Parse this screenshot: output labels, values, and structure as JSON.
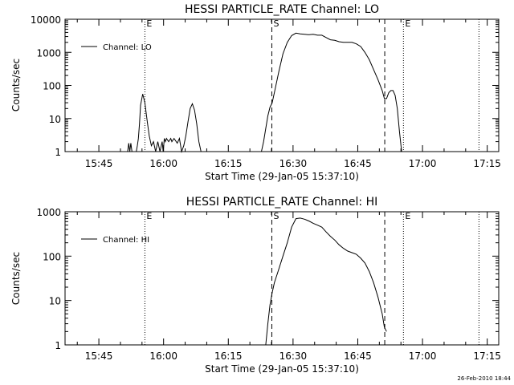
{
  "footer": {
    "timestamp": "26-Feb-2010 18:44"
  },
  "chart_data": [
    {
      "type": "line",
      "title": "HESSI PARTICLE_RATE Channel: LO",
      "xlabel": "Start Time (29-Jan-05 15:37:10)",
      "ylabel": "Counts/sec",
      "y_scale": "log",
      "ylim": [
        1,
        10000
      ],
      "yticks": [
        1,
        10,
        100,
        1000,
        10000
      ],
      "ytick_labels": [
        "1",
        "10",
        "100",
        "1000",
        "10000"
      ],
      "xlim": [
        "15:37:10",
        "17:17:40"
      ],
      "xticks": [
        "15:45",
        "16:00",
        "16:15",
        "16:30",
        "16:45",
        "17:00",
        "17:15"
      ],
      "legend": {
        "position": "top-left",
        "entries": [
          "Channel: LO"
        ]
      },
      "marker_labels": [
        "E",
        "S",
        "E"
      ],
      "dotted_lines": [
        "15:55:40",
        "16:55:35",
        "17:13:05"
      ],
      "dashed_lines": [
        "16:25:05",
        "16:51:15"
      ],
      "series": [
        {
          "name": "Channel: LO",
          "x": [
            "15:51:40",
            "15:51:55",
            "15:52:10",
            "15:52:25",
            "15:52:40",
            "15:53:40",
            "15:53:55",
            "15:54:10",
            "15:54:25",
            "15:54:40",
            "15:55:10",
            "15:55:40",
            "15:56:10",
            "15:56:40",
            "15:57:10",
            "15:57:40",
            "15:58:10",
            "15:58:40",
            "15:59:10",
            "15:59:40",
            "15:59:55",
            "16:00:10",
            "16:00:25",
            "16:00:40",
            "16:01:10",
            "16:01:40",
            "16:01:55",
            "16:02:25",
            "16:03:10",
            "16:03:40",
            "16:04:10",
            "16:04:40",
            "16:05:10",
            "16:05:40",
            "16:06:10",
            "16:06:40",
            "16:07:10",
            "16:07:40",
            "16:08:10",
            "16:08:40",
            "16:09:10",
            "16:09:40",
            "16:10:10",
            "16:10:40",
            "16:11:10",
            "16:11:40",
            "16:12:10",
            "16:12:40",
            "16:13:00",
            "16:22:40",
            "16:23:10",
            "16:23:40",
            "16:24:10",
            "16:24:40",
            "16:25:10",
            "16:25:40",
            "16:26:40",
            "16:27:40",
            "16:28:40",
            "16:29:40",
            "16:30:40",
            "16:31:40",
            "16:32:40",
            "16:33:40",
            "16:34:40",
            "16:35:40",
            "16:36:40",
            "16:37:40",
            "16:38:40",
            "16:39:40",
            "16:40:40",
            "16:41:40",
            "16:42:40",
            "16:43:40",
            "16:44:40",
            "16:45:40",
            "16:46:40",
            "16:47:40",
            "16:48:40",
            "16:49:40",
            "16:50:40",
            "16:51:10",
            "16:51:40",
            "16:52:10",
            "16:52:40",
            "16:53:10",
            "16:53:40",
            "16:54:10",
            "16:54:40",
            "16:55:10"
          ],
          "values": [
            1,
            1.8,
            1,
            1.8,
            1,
            1,
            1.5,
            2.5,
            7,
            25,
            55,
            30,
            9,
            3,
            1.5,
            2,
            1,
            2,
            1,
            2,
            1,
            2.5,
            2,
            2.5,
            2,
            2.5,
            2,
            2.5,
            1.8,
            2.5,
            1,
            1.5,
            3,
            8,
            20,
            28,
            18,
            7,
            2,
            1,
            1,
            1,
            1,
            1,
            1,
            1,
            1,
            1,
            1,
            1,
            2,
            5,
            12,
            22,
            30,
            60,
            250,
            900,
            2000,
            3200,
            3800,
            3600,
            3500,
            3400,
            3500,
            3300,
            3300,
            2800,
            2400,
            2300,
            2100,
            2000,
            2000,
            2000,
            1800,
            1500,
            1000,
            600,
            300,
            150,
            70,
            40,
            40,
            60,
            70,
            70,
            50,
            20,
            4,
            1
          ]
        }
      ]
    },
    {
      "type": "line",
      "title": "HESSI PARTICLE_RATE Channel: HI",
      "xlabel": "Start Time (29-Jan-05 15:37:10)",
      "ylabel": "Counts/sec",
      "y_scale": "log",
      "ylim": [
        1,
        1000
      ],
      "yticks": [
        1,
        10,
        100,
        1000
      ],
      "ytick_labels": [
        "1",
        "10",
        "100",
        "1000"
      ],
      "xlim": [
        "15:37:10",
        "17:17:40"
      ],
      "xticks": [
        "15:45",
        "16:00",
        "16:15",
        "16:30",
        "16:45",
        "17:00",
        "17:15"
      ],
      "legend": {
        "position": "top-left",
        "entries": [
          "Channel: HI"
        ]
      },
      "marker_labels": [
        "E",
        "S",
        "E"
      ],
      "dotted_lines": [
        "15:55:40",
        "16:55:35",
        "17:13:05"
      ],
      "dashed_lines": [
        "16:25:05",
        "16:51:15"
      ],
      "series": [
        {
          "name": "Channel: HI",
          "x": [
            "16:23:40",
            "16:24:10",
            "16:24:40",
            "16:25:10",
            "16:25:40",
            "16:26:40",
            "16:27:40",
            "16:28:40",
            "16:29:40",
            "16:30:40",
            "16:31:40",
            "16:32:40",
            "16:33:40",
            "16:34:40",
            "16:35:40",
            "16:36:40",
            "16:37:40",
            "16:38:40",
            "16:39:40",
            "16:40:40",
            "16:41:40",
            "16:42:40",
            "16:43:40",
            "16:44:40",
            "16:45:40",
            "16:46:40",
            "16:47:40",
            "16:48:40",
            "16:49:40",
            "16:50:40",
            "16:51:10",
            "16:51:40"
          ],
          "values": [
            1,
            3,
            8,
            15,
            25,
            50,
            100,
            200,
            450,
            700,
            720,
            680,
            620,
            550,
            500,
            450,
            350,
            280,
            230,
            180,
            150,
            130,
            120,
            110,
            90,
            70,
            45,
            25,
            12,
            5,
            2.5,
            2
          ]
        }
      ]
    }
  ]
}
